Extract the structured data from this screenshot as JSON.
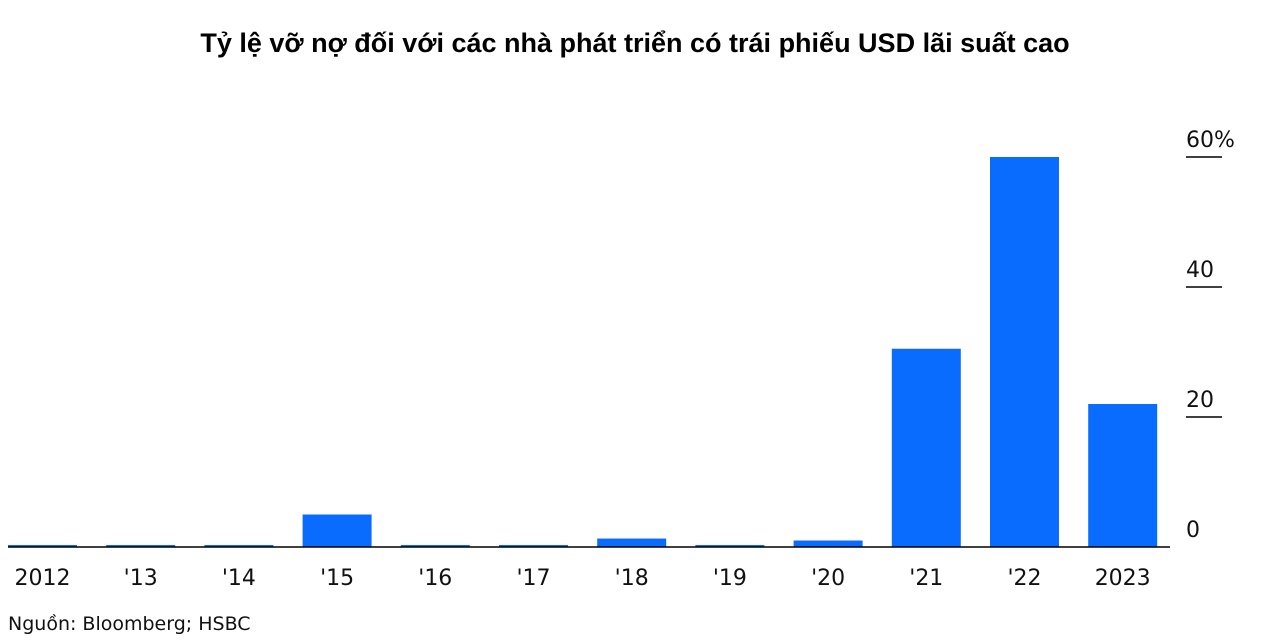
{
  "title": "Tỷ lệ vỡ nợ đối với các nhà phát triển có trái phiếu USD lãi suất cao",
  "source": "Nguồn: Bloomberg; HSBC",
  "colors": {
    "bar": "#0a6cff",
    "text": "#000000",
    "baseline": "#000000"
  },
  "chart_data": {
    "type": "bar",
    "title": "Tỷ lệ vỡ nợ đối với các nhà phát triển có trái phiếu USD lãi suất cao",
    "categories": [
      "2012",
      "'13",
      "'14",
      "'15",
      "'16",
      "'17",
      "'18",
      "'19",
      "'20",
      "'21",
      "'22",
      "2023"
    ],
    "values": [
      0,
      0,
      0,
      5,
      0,
      0,
      1.3,
      0,
      1,
      30.5,
      60,
      22
    ],
    "ylim": [
      0,
      60
    ],
    "yticks": [
      0,
      20,
      40,
      60
    ],
    "ytick_labels": [
      "0",
      "20",
      "40",
      "60%"
    ],
    "y_axis_side": "right",
    "grid": false,
    "xlabel": "",
    "ylabel": ""
  }
}
